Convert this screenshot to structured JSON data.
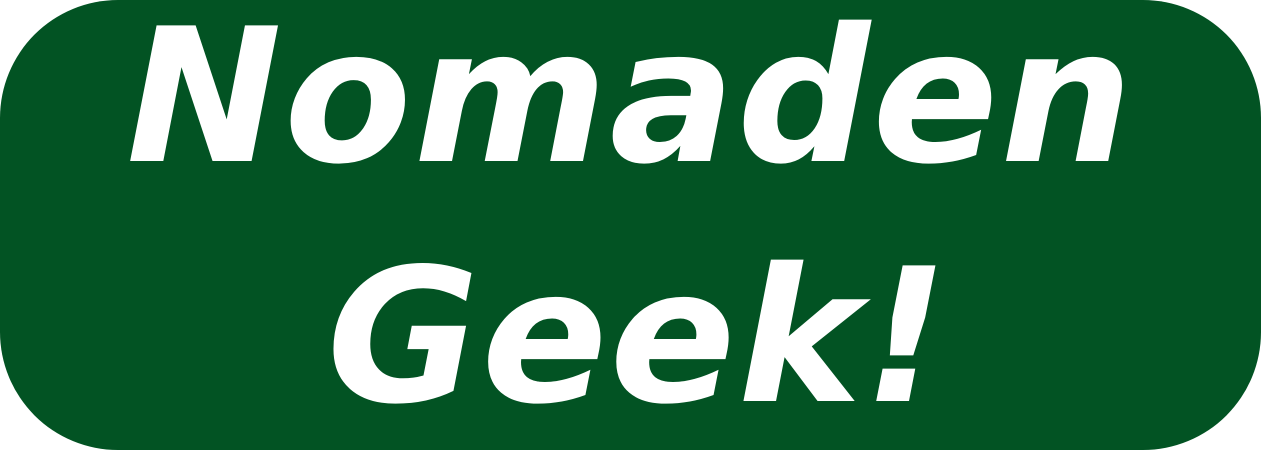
{
  "logo": {
    "line1": "Nomaden",
    "line2": "Geek!",
    "background_color": "#025323",
    "text_color": "#ffffff"
  }
}
